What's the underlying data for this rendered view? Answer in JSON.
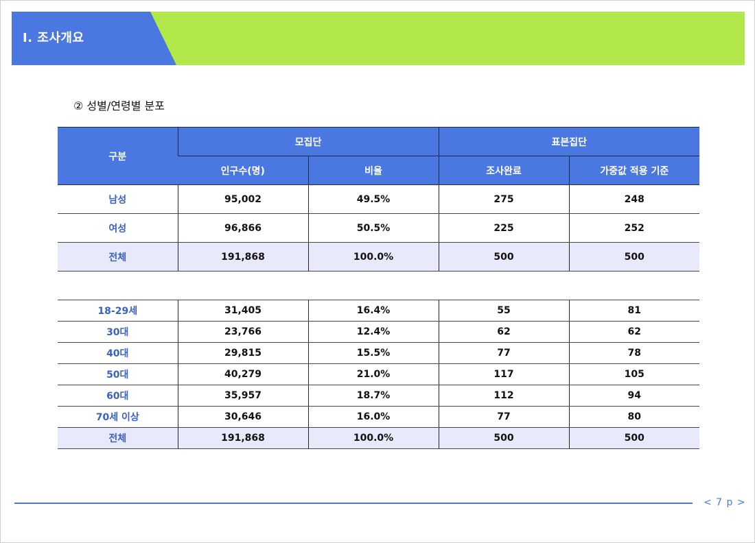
{
  "header": {
    "title": "Ⅰ. 조사개요"
  },
  "subtitle": "② 성별/연령별 분포",
  "table": {
    "head": {
      "category": "구분",
      "population": "모집단",
      "sample": "표본집단",
      "population_count": "인구수(명)",
      "ratio": "비율",
      "completed": "조사완료",
      "weighted": "가중값 적용 기준"
    },
    "gender_rows": [
      {
        "label": "남성",
        "count": "95,002",
        "ratio": "49.5%",
        "completed": "275",
        "weighted": "248"
      },
      {
        "label": "여성",
        "count": "96,866",
        "ratio": "50.5%",
        "completed": "225",
        "weighted": "252"
      },
      {
        "label": "전체",
        "count": "191,868",
        "ratio": "100.0%",
        "completed": "500",
        "weighted": "500"
      }
    ],
    "age_rows": [
      {
        "label": "18-29세",
        "count": "31,405",
        "ratio": "16.4%",
        "completed": "55",
        "weighted": "81"
      },
      {
        "label": "30대",
        "count": "23,766",
        "ratio": "12.4%",
        "completed": "62",
        "weighted": "62"
      },
      {
        "label": "40대",
        "count": "29,815",
        "ratio": "15.5%",
        "completed": "77",
        "weighted": "78"
      },
      {
        "label": "50대",
        "count": "40,279",
        "ratio": "21.0%",
        "completed": "117",
        "weighted": "105"
      },
      {
        "label": "60대",
        "count": "35,957",
        "ratio": "18.7%",
        "completed": "112",
        "weighted": "94"
      },
      {
        "label": "70세 이상",
        "count": "30,646",
        "ratio": "16.0%",
        "completed": "77",
        "weighted": "80"
      },
      {
        "label": "전체",
        "count": "191,868",
        "ratio": "100.0%",
        "completed": "500",
        "weighted": "500"
      }
    ]
  },
  "footer": {
    "page": "< 7 p >"
  },
  "colors": {
    "accent_blue": "#4a78e0",
    "accent_green": "#b3e84b",
    "total_row_bg": "#e8e9fb"
  }
}
